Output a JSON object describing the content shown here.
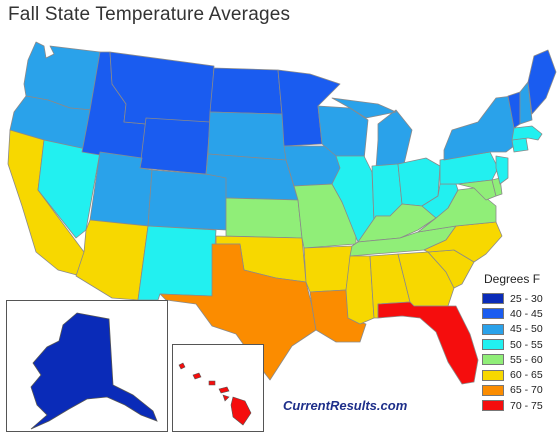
{
  "title": "Fall State Temperature Averages",
  "source": "CurrentResults.com",
  "legend": {
    "title": "Degrees F",
    "items": [
      {
        "label": "25 - 30",
        "color": "#0a2bb8"
      },
      {
        "label": "40 - 45",
        "color": "#1a5cf0"
      },
      {
        "label": "45 - 50",
        "color": "#2aa2ea"
      },
      {
        "label": "50 - 55",
        "color": "#22f0f0"
      },
      {
        "label": "55 - 60",
        "color": "#90ee78"
      },
      {
        "label": "60 - 65",
        "color": "#f7d800"
      },
      {
        "label": "65 - 70",
        "color": "#fb8c00"
      },
      {
        "label": "70 - 75",
        "color": "#f50d0d"
      }
    ]
  },
  "states": {
    "WA": "45 - 50",
    "OR": "45 - 50",
    "CA": "60 - 65",
    "NV": "50 - 55",
    "ID": "40 - 45",
    "MT": "40 - 45",
    "WY": "40 - 45",
    "UT": "45 - 50",
    "AZ": "60 - 65",
    "CO": "45 - 50",
    "NM": "50 - 55",
    "ND": "40 - 45",
    "SD": "45 - 50",
    "NE": "45 - 50",
    "KS": "55 - 60",
    "OK": "60 - 65",
    "TX": "65 - 70",
    "MN": "40 - 45",
    "IA": "45 - 50",
    "MO": "55 - 60",
    "AR": "60 - 65",
    "LA": "65 - 70",
    "WI": "45 - 50",
    "IL": "50 - 55",
    "MI": "45 - 50",
    "IN": "50 - 55",
    "OH": "50 - 55",
    "KY": "55 - 60",
    "TN": "55 - 60",
    "MS": "60 - 65",
    "AL": "60 - 65",
    "GA": "60 - 65",
    "FL": "70 - 75",
    "SC": "60 - 65",
    "NC": "60 - 65",
    "VA": "55 - 60",
    "WV": "50 - 55",
    "PA": "50 - 55",
    "NY": "45 - 50",
    "VT": "40 - 45",
    "NH": "45 - 50",
    "ME": "40 - 45",
    "MA": "50 - 55",
    "CT": "50 - 55",
    "NJ": "50 - 55",
    "MD": "55 - 60",
    "DE": "55 - 60",
    "AK": "25 - 30",
    "HI": "70 - 75"
  }
}
